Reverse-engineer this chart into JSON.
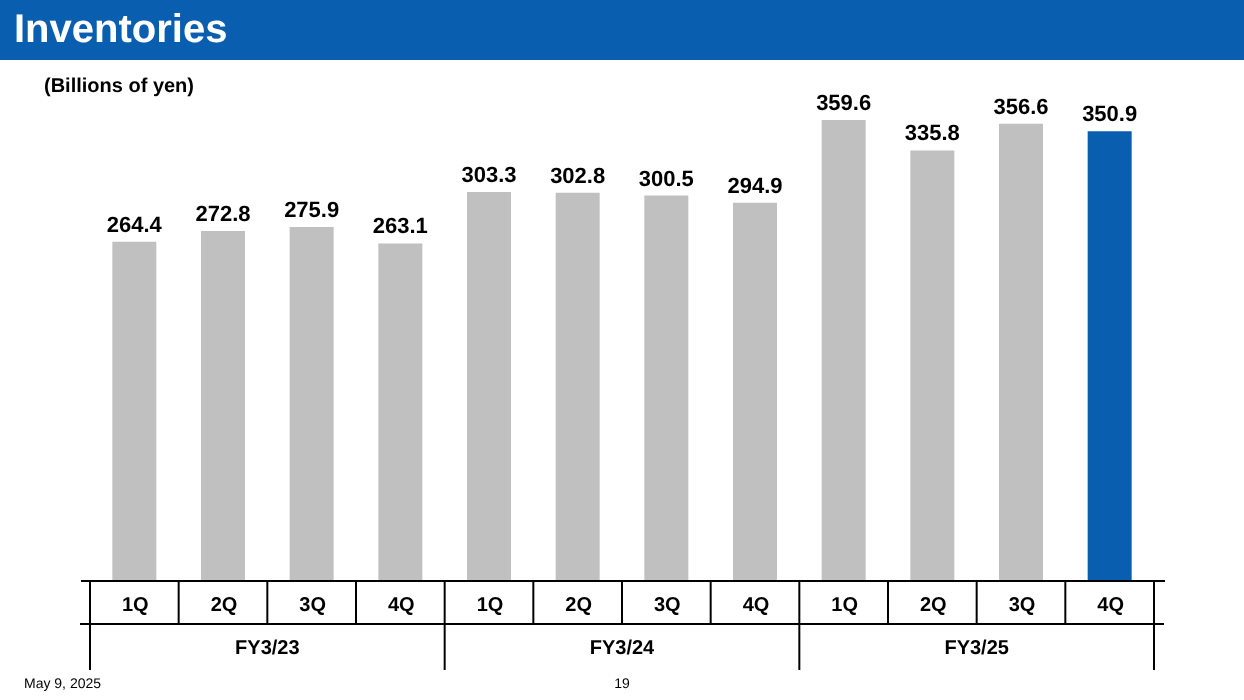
{
  "chart_data": {
    "type": "bar",
    "title": "Inventories",
    "subtitle": "(Billions of yen)",
    "categories": [
      "1Q",
      "2Q",
      "3Q",
      "4Q",
      "1Q",
      "2Q",
      "3Q",
      "4Q",
      "1Q",
      "2Q",
      "3Q",
      "4Q"
    ],
    "values": [
      264.4,
      272.8,
      275.9,
      263.1,
      303.3,
      302.8,
      300.5,
      294.9,
      359.6,
      335.8,
      356.6,
      350.9
    ],
    "colors": [
      "#c0c0c0",
      "#c0c0c0",
      "#c0c0c0",
      "#c0c0c0",
      "#c0c0c0",
      "#c0c0c0",
      "#c0c0c0",
      "#c0c0c0",
      "#c0c0c0",
      "#c0c0c0",
      "#c0c0c0",
      "#0a5eb0"
    ],
    "data_labels": true,
    "grid": false,
    "annotations": [
      "FY3/23",
      "FY3/24",
      "FY3/25",
      "May 9, 2025",
      "19"
    ]
  }
}
